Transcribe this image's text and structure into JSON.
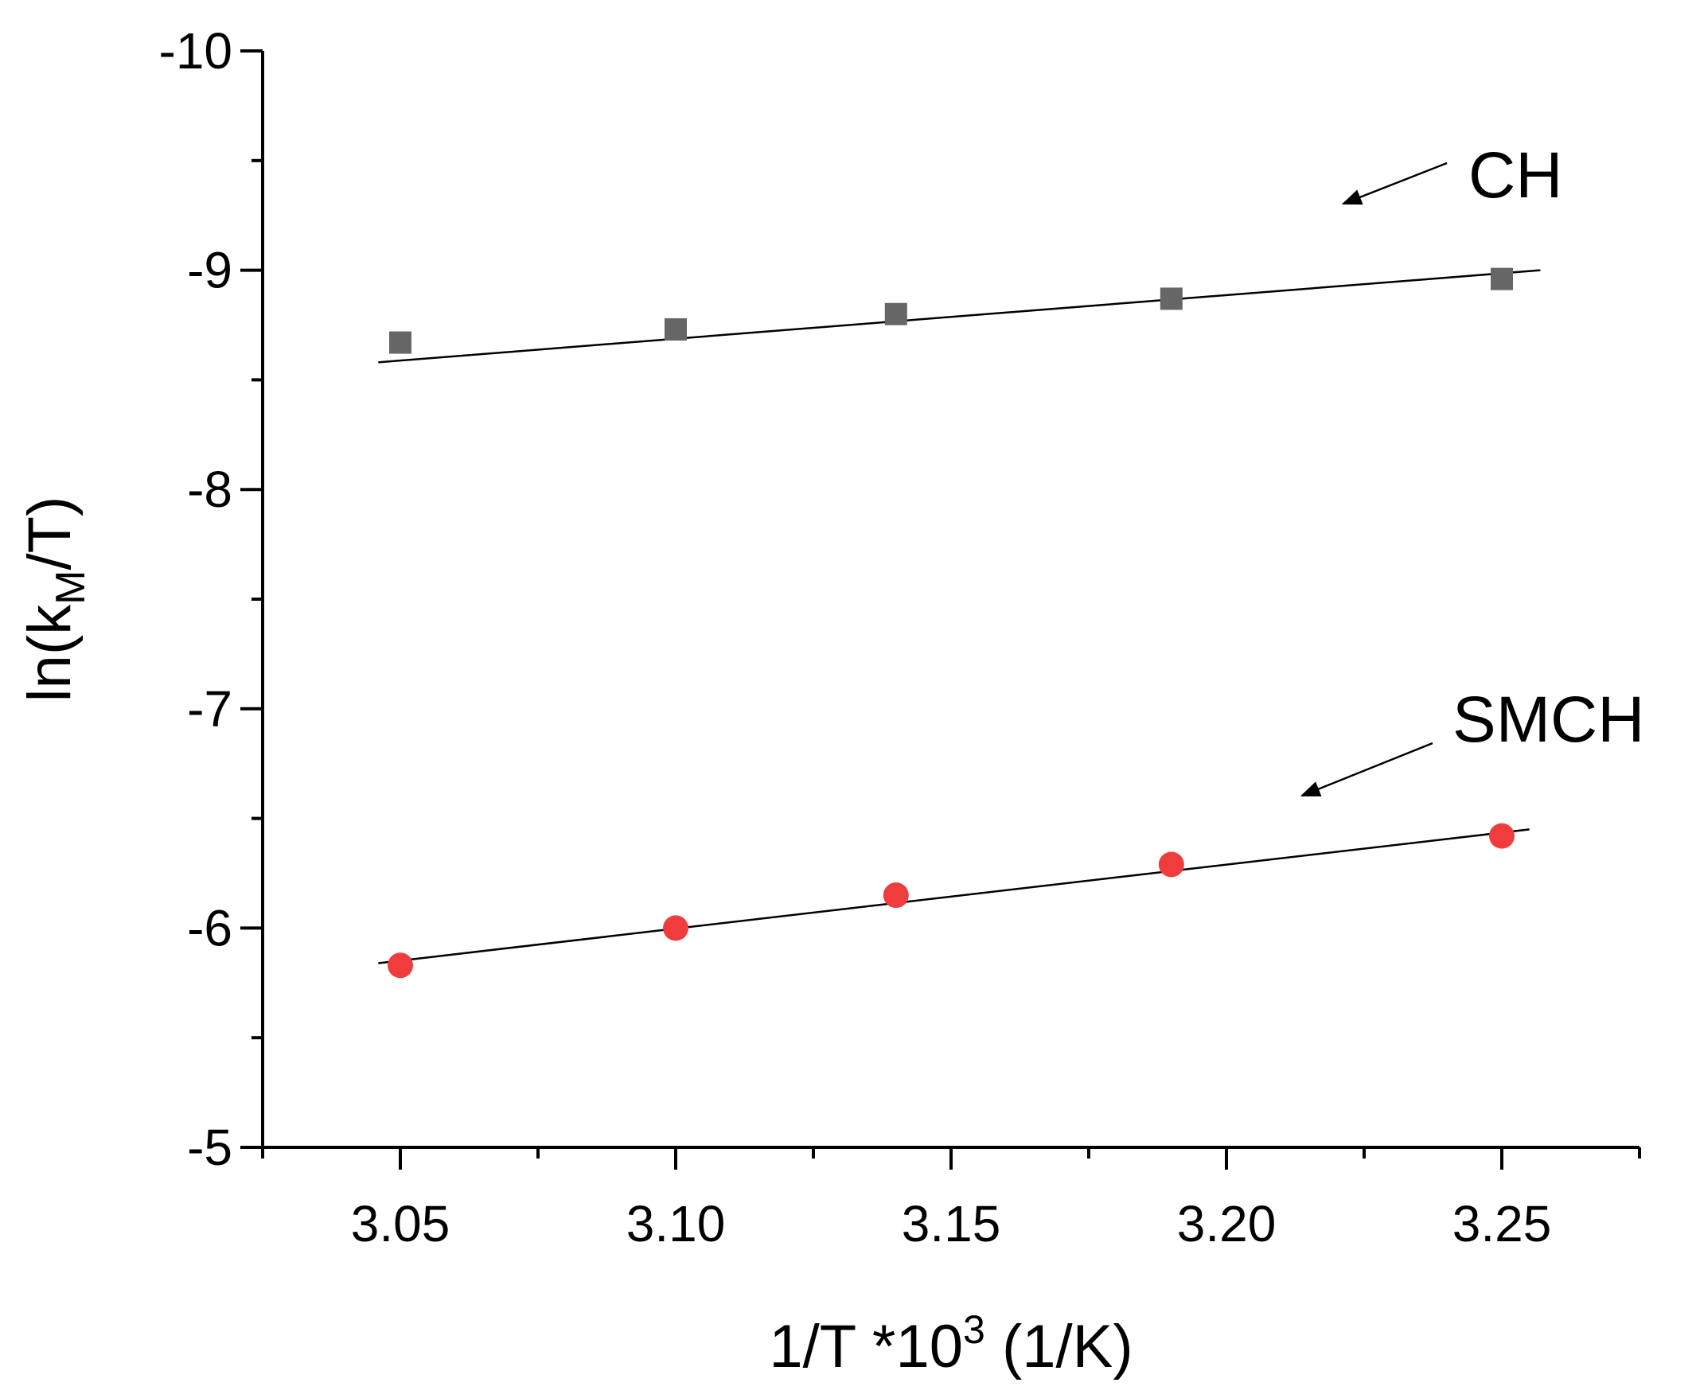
{
  "chart_data": {
    "type": "scatter",
    "title": "",
    "xlabel": "1/T *10^3 (1/K)",
    "xlabel_parts": {
      "main": "1/T *10",
      "sup": "3",
      "tail": " (1/K)"
    },
    "ylabel": "ln(k_M/T)",
    "ylabel_parts": {
      "pre": "ln(k",
      "sub": "M",
      "post": "/T)"
    },
    "xlim": [
      3.025,
      3.275
    ],
    "ylim": [
      -5,
      -10
    ],
    "y_inverted": true,
    "x_ticks": [
      3.05,
      3.1,
      3.15,
      3.2,
      3.25
    ],
    "x_tick_labels": [
      "3.05",
      "3.10",
      "3.15",
      "3.20",
      "3.25"
    ],
    "y_ticks": [
      -10,
      -9,
      -8,
      -7,
      -6,
      -5
    ],
    "y_tick_labels": [
      "-10",
      "-9",
      "-8",
      "-7",
      "-6",
      "-5"
    ],
    "grid": false,
    "series": [
      {
        "name": "CH",
        "marker": "square",
        "color": "#666666",
        "x": [
          3.05,
          3.1,
          3.14,
          3.19,
          3.25
        ],
        "y": [
          -8.67,
          -8.73,
          -8.8,
          -8.87,
          -8.96
        ],
        "fit": {
          "x": [
            3.046,
            3.257
          ],
          "y": [
            -8.58,
            -9.0
          ]
        }
      },
      {
        "name": "SMCH",
        "marker": "circle",
        "color": "#f03c3c",
        "x": [
          3.05,
          3.1,
          3.14,
          3.19,
          3.25
        ],
        "y": [
          -5.83,
          -6.0,
          -6.15,
          -6.29,
          -6.42
        ],
        "fit": {
          "x": [
            3.046,
            3.255
          ],
          "y": [
            -5.84,
            -6.45
          ]
        }
      }
    ],
    "annotations": [
      {
        "text": "CH",
        "series": "CH"
      },
      {
        "text": "SMCH",
        "series": "SMCH"
      }
    ]
  }
}
